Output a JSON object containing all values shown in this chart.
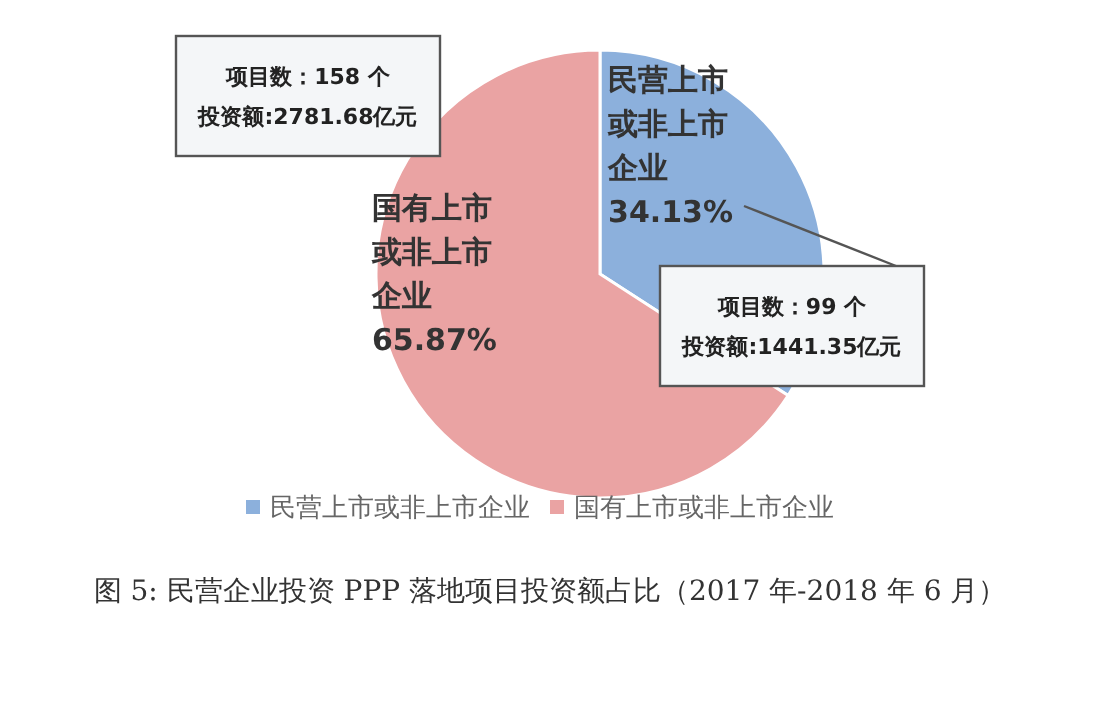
{
  "chart_data": {
    "type": "pie",
    "title": "图 5: 民营企业投资 PPP 落地项目投资额占比（2017 年-2018 年 6 月）",
    "categories": [
      "民营上市或非上市企业",
      "国有上市或非上市企业"
    ],
    "values": [
      34.13,
      65.87
    ],
    "colors": [
      "#8cb0dc",
      "#eaa3a3"
    ],
    "value_labels": [
      "民营上市或非上市企业34.13%",
      "国有上市或非上市企业65.87%"
    ],
    "legend": "bottom",
    "annotations": [
      "项目数：99 个",
      "投资额:1441.35亿元",
      "项目数：158 个",
      "投资额:2781.68亿元"
    ]
  }
}
